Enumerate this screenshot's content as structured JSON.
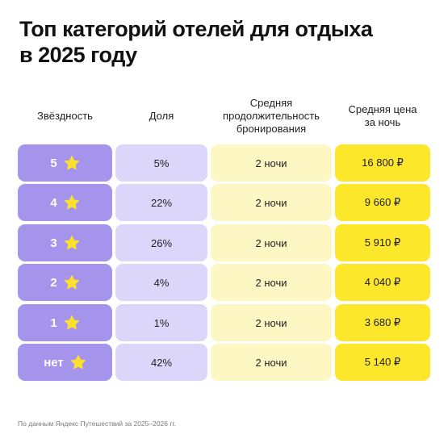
{
  "title": {
    "line1": "Топ категорий отелей для отдыха",
    "line2": "в 2025 году"
  },
  "headers": {
    "stars": "Звёздность",
    "share": "Доля",
    "duration": [
      "Средняя",
      "продолжительность",
      "бронирования"
    ],
    "price": [
      "Средняя цена",
      "за ночь"
    ]
  },
  "rows": [
    {
      "stars": "5",
      "share": "5%",
      "duration": "2 ночи",
      "price": "16 800 ₽"
    },
    {
      "stars": "4",
      "share": "22%",
      "duration": "2 ночи",
      "price": "9 660 ₽"
    },
    {
      "stars": "3",
      "share": "26%",
      "duration": "2 ночи",
      "price": "5 910 ₽"
    },
    {
      "stars": "2",
      "share": "4%",
      "duration": "2 ночи",
      "price": "4 040 ₽"
    },
    {
      "stars": "1",
      "share": "1%",
      "duration": "2 ночи",
      "price": "3 680 ₽"
    },
    {
      "stars": "нет",
      "share": "42%",
      "duration": "2 ночи",
      "price": "5 140 ₽"
    }
  ],
  "footer": "По данным Яндекс Путешествий за 2025–2026 гг.",
  "colors": {
    "stars_cell": "#a494ec",
    "share_cell": "#ddd6fb",
    "duration_cell": "#fdf7c4",
    "price_cell": "#fce72a",
    "star_icon": "#fde02b"
  },
  "icons": {
    "rating": "star-icon"
  }
}
